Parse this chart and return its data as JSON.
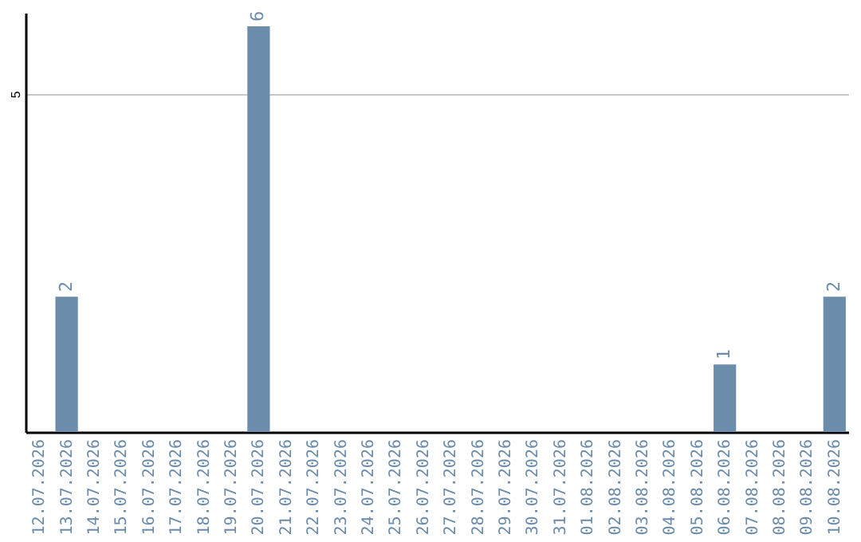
{
  "chart_data": {
    "type": "bar",
    "categories": [
      "12.07.2026",
      "13.07.2026",
      "14.07.2026",
      "15.07.2026",
      "16.07.2026",
      "17.07.2026",
      "18.07.2026",
      "19.07.2026",
      "20.07.2026",
      "21.07.2026",
      "22.07.2026",
      "23.07.2026",
      "24.07.2026",
      "25.07.2026",
      "26.07.2026",
      "27.07.2026",
      "28.07.2026",
      "29.07.2026",
      "30.07.2026",
      "31.07.2026",
      "01.08.2026",
      "02.08.2026",
      "03.08.2026",
      "04.08.2026",
      "05.08.2026",
      "06.08.2026",
      "07.08.2026",
      "08.08.2026",
      "09.08.2026",
      "10.08.2026"
    ],
    "values": [
      0,
      2,
      0,
      0,
      0,
      0,
      0,
      0,
      6,
      0,
      0,
      0,
      0,
      0,
      0,
      0,
      0,
      0,
      0,
      0,
      0,
      0,
      0,
      0,
      0,
      1,
      0,
      0,
      0,
      2
    ],
    "value_labels": [
      null,
      "2",
      null,
      null,
      null,
      null,
      null,
      null,
      "6",
      null,
      null,
      null,
      null,
      null,
      null,
      null,
      null,
      null,
      null,
      null,
      null,
      null,
      null,
      null,
      null,
      "1",
      null,
      null,
      null,
      "2"
    ],
    "color": "#6b8cab",
    "ylim": [
      0,
      6.2
    ],
    "yticks": [
      5
    ],
    "grid": "y"
  }
}
